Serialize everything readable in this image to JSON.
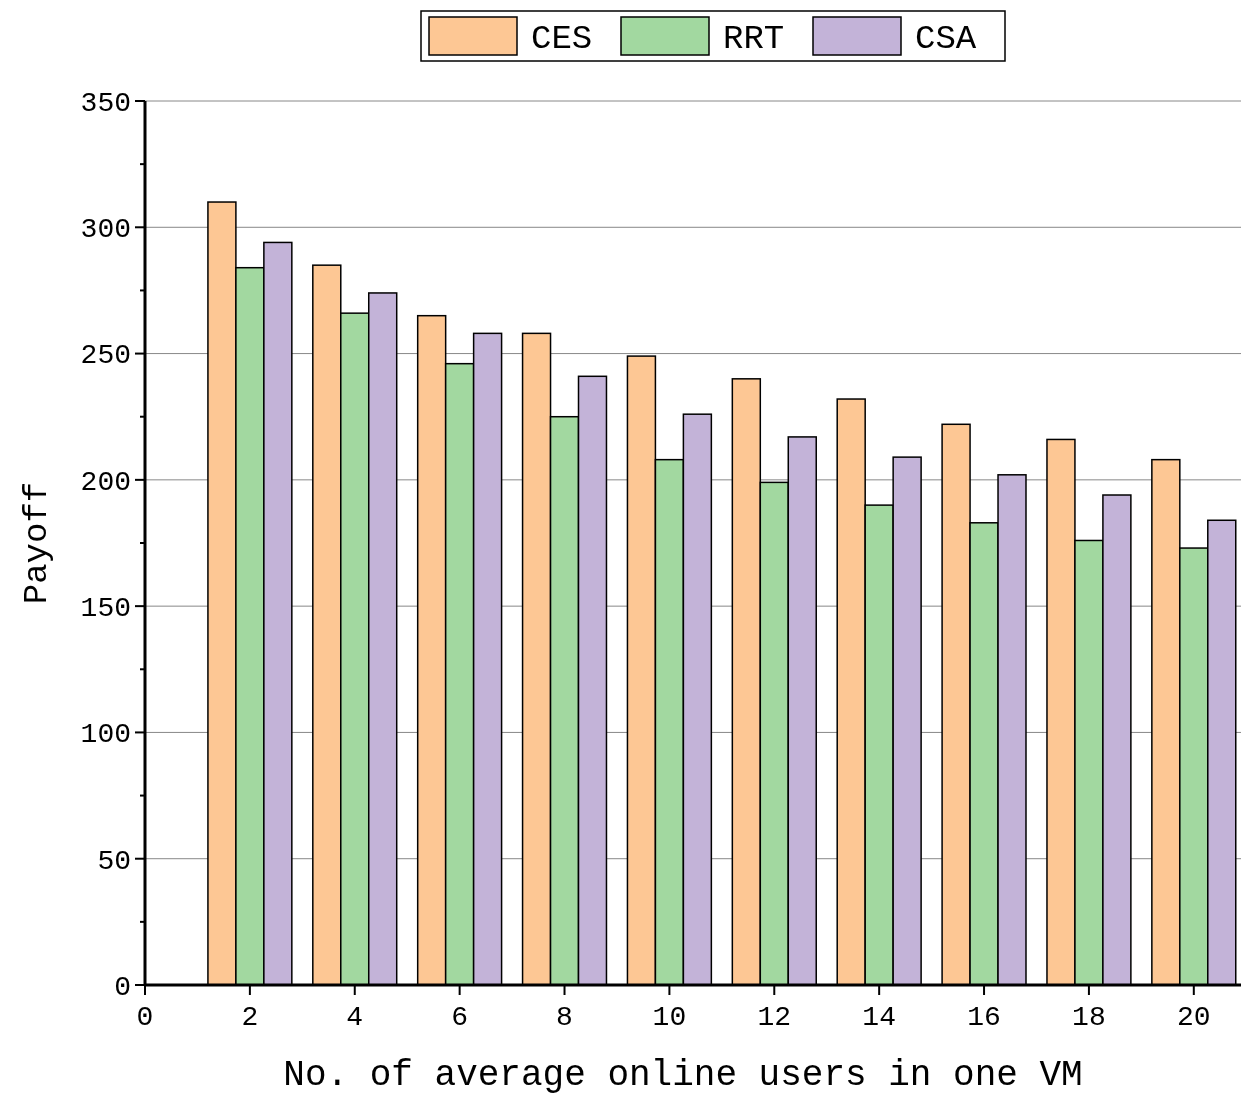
{
  "chart_data": {
    "type": "bar",
    "xlabel": "No. of average online users in one VM",
    "ylabel": "Payoff",
    "x": [
      2,
      4,
      6,
      8,
      10,
      12,
      14,
      16,
      18,
      20
    ],
    "series": [
      {
        "name": "CES",
        "color": "#fdc794",
        "values": [
          310,
          285,
          265,
          258,
          249,
          240,
          232,
          222,
          216,
          208
        ]
      },
      {
        "name": "RRT",
        "color": "#a2d8a0",
        "values": [
          284,
          266,
          246,
          225,
          208,
          199,
          190,
          183,
          176,
          173
        ]
      },
      {
        "name": "CSA",
        "color": "#c3b3d8",
        "values": [
          294,
          274,
          258,
          241,
          226,
          217,
          209,
          202,
          194,
          184
        ]
      }
    ],
    "xlim": [
      0,
      20.9
    ],
    "xticks": [
      0,
      2,
      4,
      6,
      8,
      10,
      12,
      14,
      16,
      18,
      20
    ],
    "ylim": [
      0,
      350
    ],
    "yticks": [
      0,
      {
        "value": 25,
        "label": null
      },
      50,
      {
        "value": 75,
        "label": null
      },
      100,
      {
        "value": 125,
        "label": null
      },
      150,
      {
        "value": 175,
        "label": null
      },
      200,
      {
        "value": 225,
        "label": null
      },
      250,
      {
        "value": 275,
        "label": null
      },
      300,
      {
        "value": 325,
        "label": null
      },
      350
    ],
    "grid": "y",
    "legend": "top"
  }
}
